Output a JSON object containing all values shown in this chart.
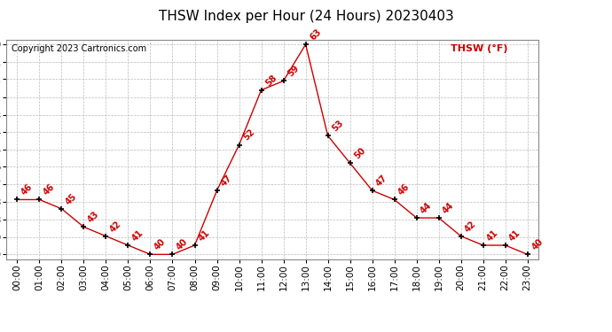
{
  "title": "THSW Index per Hour (24 Hours) 20230403",
  "copyright": "Copyright 2023 Cartronics.com",
  "legend_label": "THSW (°F)",
  "hours": [
    0,
    1,
    2,
    3,
    4,
    5,
    6,
    7,
    8,
    9,
    10,
    11,
    12,
    13,
    14,
    15,
    16,
    17,
    18,
    19,
    20,
    21,
    22,
    23
  ],
  "values": [
    46,
    46,
    45,
    43,
    42,
    41,
    40,
    40,
    41,
    47,
    52,
    58,
    59,
    63,
    53,
    50,
    47,
    46,
    44,
    44,
    42,
    41,
    41,
    40
  ],
  "yticks": [
    40.0,
    41.9,
    43.8,
    45.8,
    47.7,
    49.6,
    51.5,
    53.4,
    55.3,
    57.2,
    59.2,
    61.1,
    63.0
  ],
  "line_color": "#cc0000",
  "marker_color": "#000000",
  "label_color": "#cc0000",
  "title_color": "#000000",
  "copyright_color": "#000000",
  "legend_color": "#cc0000",
  "grid_color": "#bbbbbb",
  "bg_color": "#ffffff",
  "title_fontsize": 11,
  "tick_fontsize": 7.5,
  "label_fontsize": 7,
  "copyright_fontsize": 7,
  "legend_fontsize": 8
}
